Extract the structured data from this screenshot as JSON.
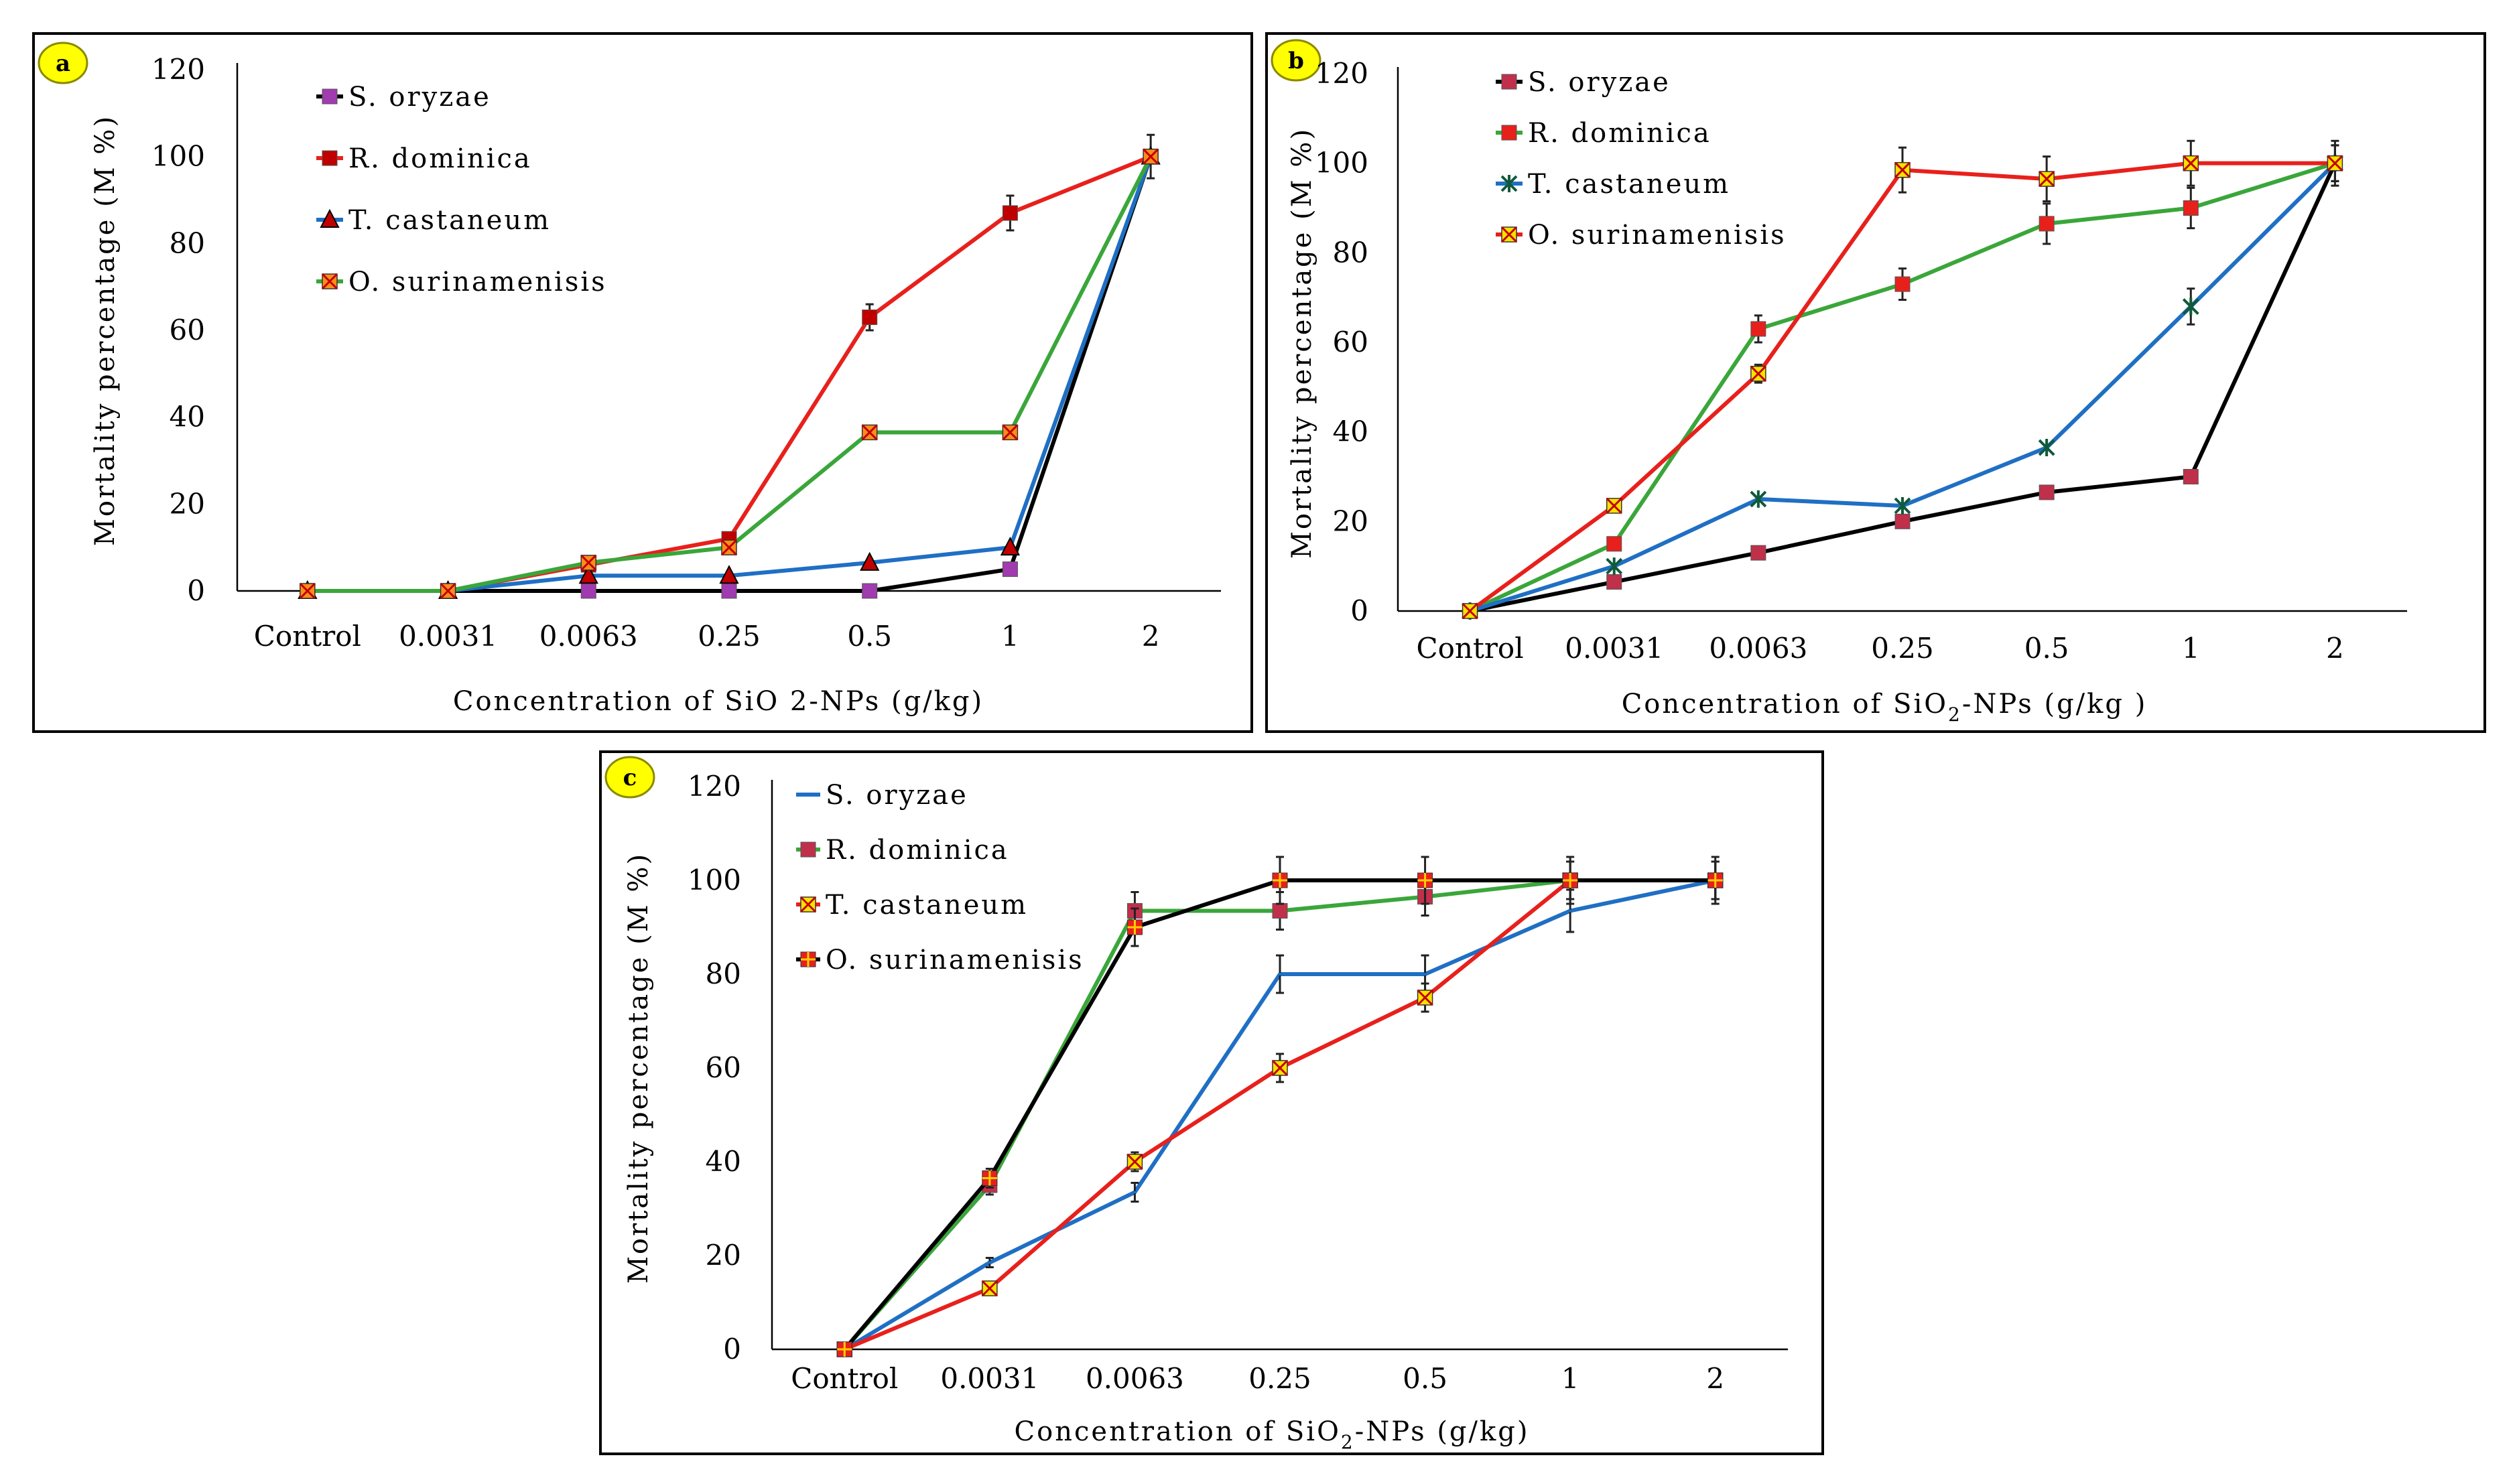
{
  "chart_data": [
    {
      "panel": "a",
      "type": "line",
      "categories": [
        "Control",
        "0.0031",
        "0.0063",
        "0.25",
        "0.5",
        "1",
        "2"
      ],
      "xlabel": "Concentration of SiO 2-NPs (g/kg)",
      "ylabel": "Mortality percentage (M %)",
      "ylim": [
        0,
        120
      ],
      "yticks": [
        0,
        20,
        40,
        60,
        80,
        100,
        120
      ],
      "legend_position": "top-left",
      "series": [
        {
          "name": "S. oryzae",
          "color": "#000000",
          "marker": "square",
          "marker_color": "#a13bb0",
          "values": [
            0,
            0,
            0,
            0,
            0,
            5,
            100
          ]
        },
        {
          "name": "R. dominica",
          "color": "#e8201c",
          "marker": "square",
          "marker_color": "#c00000",
          "values": [
            0,
            0,
            6,
            12,
            63,
            87,
            100
          ],
          "errors": [
            0,
            0,
            0,
            0,
            3,
            4,
            5
          ]
        },
        {
          "name": "T. castaneum",
          "color": "#1f6fc4",
          "marker": "triangle",
          "marker_color": "#c00000",
          "values": [
            0,
            0,
            3.5,
            3.5,
            6.5,
            10,
            100
          ]
        },
        {
          "name": "O. surinamenisis",
          "color": "#3aa63a",
          "marker": "xsquare",
          "marker_color": "#ff8c1a",
          "values": [
            0,
            0,
            6.5,
            10,
            36.5,
            36.5,
            100
          ]
        }
      ]
    },
    {
      "panel": "b",
      "type": "line",
      "categories": [
        "Control",
        "0.0031",
        "0.0063",
        "0.25",
        "0.5",
        "1",
        "2"
      ],
      "xlabel": "Concentration of SiO",
      "xlabel_sub": "2",
      "xlabel_tail": "-NPs (g/kg )",
      "ylabel": "Mortality percentage (M %)",
      "ylim": [
        0,
        120
      ],
      "yticks": [
        0,
        20,
        40,
        60,
        80,
        100,
        120
      ],
      "legend_position": "top-left",
      "series": [
        {
          "name": "S. oryzae",
          "color": "#000000",
          "marker": "square",
          "marker_color": "#c0304a",
          "values": [
            0,
            6.5,
            13,
            20,
            26.5,
            30,
            100
          ]
        },
        {
          "name": "R. dominica",
          "color": "#3aa63a",
          "marker": "square",
          "marker_color": "#e8201c",
          "values": [
            0,
            15,
            63,
            73,
            86.5,
            90,
            100
          ],
          "errors": [
            0,
            0,
            3,
            3.5,
            4.5,
            4.5,
            4
          ]
        },
        {
          "name": "T. castaneum",
          "color": "#1f6fc4",
          "marker": "star",
          "marker_color": "#0f5a3a",
          "values": [
            0,
            10,
            25,
            23.5,
            36.5,
            68,
            100
          ],
          "errors": [
            0,
            0,
            0,
            0,
            0,
            4,
            4
          ]
        },
        {
          "name": "O. surinamenisis",
          "color": "#e8201c",
          "marker": "xsquare",
          "marker_color": "#ffe000",
          "values": [
            0,
            23.5,
            53,
            98.5,
            96.5,
            100,
            100
          ],
          "errors": [
            0,
            0,
            2,
            5,
            5,
            5,
            5
          ]
        }
      ]
    },
    {
      "panel": "c",
      "type": "line",
      "categories": [
        "Control",
        "0.0031",
        "0.0063",
        "0.25",
        "0.5",
        "1",
        "2"
      ],
      "xlabel": "Concentration of SiO",
      "xlabel_sub": "2",
      "xlabel_tail": "-NPs (g/kg)",
      "ylabel": "Mortality percentage (M %)",
      "ylim": [
        0,
        120
      ],
      "yticks": [
        0,
        20,
        40,
        60,
        80,
        100,
        120
      ],
      "legend_position": "top-left",
      "series": [
        {
          "name": "S. oryzae",
          "color": "#1f6fc4",
          "marker": "none",
          "marker_color": "#1f6fc4",
          "values": [
            0,
            18.5,
            33.5,
            80,
            80,
            93.5,
            100
          ],
          "errors": [
            0,
            1,
            2,
            4,
            4,
            4.5,
            4
          ]
        },
        {
          "name": "R. dominica",
          "color": "#3aa63a",
          "marker": "square",
          "marker_color": "#c0304a",
          "values": [
            0,
            35,
            93.5,
            93.5,
            96.5,
            100,
            100
          ],
          "errors": [
            0,
            2,
            4,
            4,
            4,
            4,
            4
          ]
        },
        {
          "name": "T. castaneum",
          "color": "#e8201c",
          "marker": "xsquare",
          "marker_color": "#ffe000",
          "values": [
            0,
            13,
            40,
            60,
            75,
            100,
            100
          ],
          "errors": [
            0,
            1,
            2,
            3,
            3,
            4,
            4
          ]
        },
        {
          "name": "O. surinamenisis",
          "color": "#000000",
          "marker": "plus",
          "marker_color": "#e8201c",
          "values": [
            0,
            36.5,
            90,
            100,
            100,
            100,
            100
          ],
          "errors": [
            0,
            2,
            4,
            5,
            5,
            5,
            5
          ]
        }
      ]
    }
  ]
}
